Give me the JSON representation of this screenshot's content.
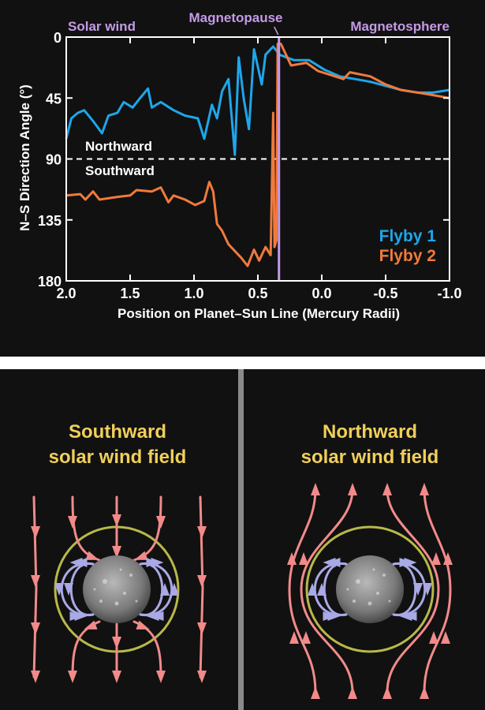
{
  "chart_data": {
    "type": "line",
    "xlabel": "Position on Planet–Sun Line (Mercury Radii)",
    "ylabel": "N–S Direction Angle (°)",
    "xlim": [
      2.0,
      -1.0
    ],
    "ylim": [
      0,
      180
    ],
    "y_inverted": true,
    "x_ticks": [
      "2.0",
      "1.5",
      "1.0",
      "0.5",
      "0.0",
      "-0.5",
      "-1.0"
    ],
    "y_ticks": [
      "0",
      "45",
      "90",
      "135",
      "180"
    ],
    "grid": false,
    "legend_position": "bottom-right",
    "reference_line": {
      "y": 90,
      "style": "dashed",
      "above_label": "Northward",
      "below_label": "Southward"
    },
    "magnetopause": {
      "x": 0.335,
      "label": "Magnetopause",
      "color": "#c49ae8"
    },
    "region_labels": {
      "left": "Solar wind",
      "right": "Magnetosphere"
    },
    "series": [
      {
        "name": "Flyby 1",
        "color": "#1ea6ea",
        "x": [
          2.0,
          1.96,
          1.91,
          1.86,
          1.79,
          1.72,
          1.67,
          1.6,
          1.55,
          1.48,
          1.43,
          1.36,
          1.33,
          1.26,
          1.16,
          1.07,
          0.97,
          0.92,
          0.86,
          0.82,
          0.78,
          0.73,
          0.68,
          0.65,
          0.61,
          0.57,
          0.53,
          0.47,
          0.44,
          0.38,
          0.33,
          0.22,
          0.1,
          -0.02,
          -0.14,
          -0.26,
          -0.38,
          -0.5,
          -0.62,
          -0.75,
          -0.87,
          -1.0
        ],
        "y": [
          75,
          60,
          56,
          54,
          62,
          71,
          58,
          56,
          48,
          52,
          46,
          38,
          52,
          48,
          54,
          58,
          60,
          75,
          50,
          60,
          40,
          31,
          87,
          15,
          46,
          68,
          9,
          35,
          13,
          7,
          13,
          17,
          17,
          24,
          29,
          31,
          33,
          36,
          39,
          41,
          41,
          39
        ]
      },
      {
        "name": "Flyby 2",
        "color": "#f07a3c",
        "x": [
          2.0,
          1.89,
          1.85,
          1.79,
          1.74,
          1.6,
          1.5,
          1.45,
          1.33,
          1.26,
          1.2,
          1.16,
          1.07,
          0.99,
          0.92,
          0.88,
          0.85,
          0.82,
          0.78,
          0.73,
          0.63,
          0.58,
          0.53,
          0.49,
          0.44,
          0.4,
          0.38,
          0.37,
          0.355,
          0.345,
          0.32,
          0.24,
          0.12,
          0.03,
          -0.17,
          -0.22,
          -0.38,
          -0.5,
          -0.62,
          -0.82,
          -1.0
        ],
        "y": [
          117,
          116,
          120,
          114,
          120,
          118,
          117,
          113,
          114,
          111,
          122,
          117,
          120,
          124,
          121,
          107,
          114,
          138,
          143,
          153,
          163,
          169,
          157,
          165,
          155,
          161,
          56,
          155,
          150,
          5,
          5,
          21,
          19,
          25,
          31,
          26,
          29,
          35,
          39,
          42,
          45
        ]
      }
    ]
  },
  "diagrams": {
    "left_title_line1": "Southward",
    "left_title_line2": "solar wind field",
    "right_title_line1": "Northward",
    "right_title_line2": "solar wind field"
  }
}
